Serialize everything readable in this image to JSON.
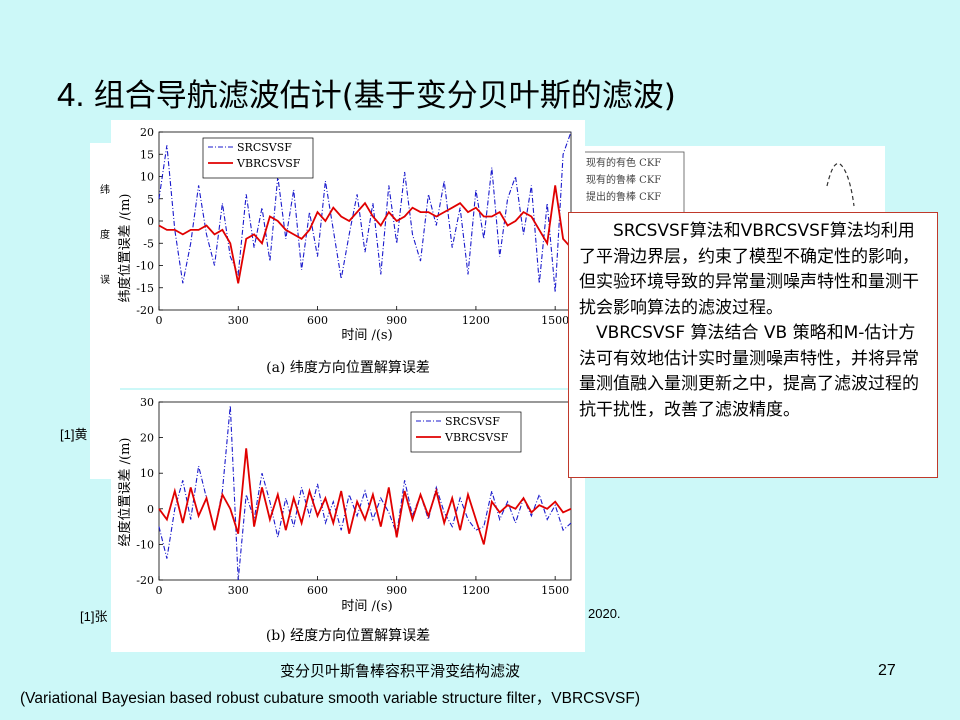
{
  "title": {
    "number": "4.",
    "text": "组合导航滤波估计",
    "paren": "(基于变分贝叶斯的滤波)"
  },
  "background_figure": {
    "legend": [
      "现有的有色 CKF",
      "现有的鲁棒 CKF",
      "提出的鲁棒 CKF"
    ],
    "ref_label": "[1]黄"
  },
  "figures": [
    {
      "caption": "(a)  纬度方向位置解算误差",
      "ylabel": "纬度位置误差 /(m)",
      "xlabel": "时间 /(s)",
      "legend": [
        "SRCSVSF",
        "VBRCSVSF"
      ]
    },
    {
      "caption": "(b)  经度方向位置解算误差",
      "ylabel": "经度位置误差 /(m)",
      "xlabel": "时间 /(s)",
      "legend": [
        "SRCSVSF",
        "VBRCSVSF"
      ]
    }
  ],
  "chart_data": [
    {
      "type": "line",
      "title": "",
      "xlabel": "时间 /(s)",
      "ylabel": "纬度位置误差 /(m)",
      "xlim": [
        0,
        1560
      ],
      "ylim": [
        -20,
        20
      ],
      "xticks": [
        0,
        300,
        600,
        900,
        1200,
        1500
      ],
      "yticks": [
        20,
        15,
        10,
        5,
        0,
        -5,
        -10,
        -15,
        -20
      ],
      "legend_position": "top-left",
      "series": [
        {
          "name": "SRCSVSF",
          "color": "#1a1acc",
          "style": "dash-dot",
          "x": [
            0,
            30,
            60,
            90,
            120,
            150,
            180,
            210,
            240,
            270,
            300,
            330,
            360,
            390,
            420,
            450,
            480,
            510,
            540,
            570,
            600,
            630,
            660,
            690,
            720,
            750,
            780,
            810,
            840,
            870,
            900,
            930,
            960,
            990,
            1020,
            1050,
            1080,
            1110,
            1140,
            1170,
            1200,
            1230,
            1260,
            1290,
            1320,
            1350,
            1380,
            1410,
            1440,
            1470,
            1500,
            1530,
            1560
          ],
          "y": [
            5,
            17,
            -2,
            -14,
            -5,
            8,
            -3,
            -10,
            4,
            -8,
            -12,
            6,
            -6,
            3,
            -9,
            10,
            -4,
            7,
            -11,
            2,
            -8,
            9,
            -2,
            -13,
            -3,
            6,
            -7,
            4,
            -12,
            8,
            -5,
            11,
            -3,
            -9,
            6,
            -1,
            9,
            -6,
            3,
            -12,
            7,
            -4,
            12,
            -8,
            5,
            10,
            -3,
            8,
            -14,
            4,
            -16,
            15,
            20
          ]
        },
        {
          "name": "VBRCSVSF",
          "color": "#e00000",
          "style": "solid",
          "x": [
            0,
            30,
            60,
            90,
            120,
            150,
            180,
            210,
            240,
            270,
            300,
            330,
            360,
            390,
            420,
            450,
            480,
            510,
            540,
            570,
            600,
            630,
            660,
            690,
            720,
            750,
            780,
            810,
            840,
            870,
            900,
            930,
            960,
            990,
            1020,
            1050,
            1080,
            1110,
            1140,
            1170,
            1200,
            1230,
            1260,
            1290,
            1320,
            1350,
            1380,
            1410,
            1440,
            1470,
            1500,
            1530,
            1560
          ],
          "y": [
            -1,
            -2,
            -2,
            -3,
            -2,
            -2,
            -1,
            -3,
            -2,
            -5,
            -14,
            -4,
            -3,
            -5,
            1,
            0,
            -2,
            -3,
            -4,
            -2,
            2,
            0,
            3,
            1,
            0,
            2,
            4,
            1,
            -1,
            2,
            0,
            1,
            3,
            2,
            2,
            1,
            2,
            3,
            4,
            2,
            3,
            1,
            1,
            2,
            -1,
            0,
            2,
            1,
            -2,
            -5,
            8,
            -4,
            -6
          ]
        }
      ]
    },
    {
      "type": "line",
      "title": "",
      "xlabel": "时间 /(s)",
      "ylabel": "经度位置误差 /(m)",
      "xlim": [
        0,
        1560
      ],
      "ylim": [
        -20,
        30
      ],
      "xticks": [
        0,
        300,
        600,
        900,
        1200,
        1500
      ],
      "yticks": [
        30,
        20,
        10,
        0,
        -10,
        -20
      ],
      "legend_position": "top-right",
      "series": [
        {
          "name": "SRCSVSF",
          "color": "#1a1acc",
          "style": "dash-dot",
          "x": [
            0,
            30,
            60,
            90,
            120,
            150,
            180,
            210,
            240,
            270,
            300,
            330,
            360,
            390,
            420,
            450,
            480,
            510,
            540,
            570,
            600,
            630,
            660,
            690,
            720,
            750,
            780,
            810,
            840,
            870,
            900,
            930,
            960,
            990,
            1020,
            1050,
            1080,
            1110,
            1140,
            1170,
            1200,
            1230,
            1260,
            1290,
            1320,
            1350,
            1380,
            1410,
            1440,
            1470,
            1500,
            1530,
            1560
          ],
          "y": [
            -5,
            -14,
            0,
            8,
            -3,
            12,
            3,
            -6,
            5,
            29,
            -20,
            4,
            -3,
            10,
            2,
            -8,
            3,
            -5,
            6,
            -2,
            7,
            -4,
            2,
            -6,
            4,
            -2,
            5,
            -3,
            3,
            -1,
            -7,
            8,
            -2,
            4,
            -3,
            6,
            -1,
            -5,
            3,
            -3,
            -6,
            -5,
            5,
            -3,
            2,
            -4,
            3,
            -2,
            4,
            -3,
            1,
            -6,
            -4
          ]
        },
        {
          "name": "VBRCSVSF",
          "color": "#e00000",
          "style": "solid",
          "x": [
            0,
            30,
            60,
            90,
            120,
            150,
            180,
            210,
            240,
            270,
            300,
            330,
            360,
            390,
            420,
            450,
            480,
            510,
            540,
            570,
            600,
            630,
            660,
            690,
            720,
            750,
            780,
            810,
            840,
            870,
            900,
            930,
            960,
            990,
            1020,
            1050,
            1080,
            1110,
            1140,
            1170,
            1200,
            1230,
            1260,
            1290,
            1320,
            1350,
            1380,
            1410,
            1440,
            1470,
            1500,
            1530,
            1560
          ],
          "y": [
            0,
            -3,
            5,
            -4,
            6,
            -2,
            3,
            -6,
            4,
            0,
            -7,
            17,
            -5,
            6,
            -3,
            4,
            -6,
            3,
            -4,
            5,
            -2,
            3,
            -4,
            5,
            -7,
            2,
            -3,
            4,
            -5,
            6,
            -8,
            5,
            -3,
            4,
            -2,
            5,
            -4,
            3,
            -6,
            4,
            -3,
            -10,
            2,
            -1,
            1,
            0,
            3,
            -1,
            1,
            0,
            2,
            -1,
            0
          ]
        }
      ]
    }
  ],
  "callout": {
    "p1": "SRCSVSF算法和VBRCSVSF算法均利用了平滑边界层，约束了模型不确定性的影响，但实验环境导致的异常量测噪声特性和量测干扰会影响算法的滤波过程。",
    "p2": "VBRCSVSF 算法结合 VB 策略和M-估计方法可有效地估计实时量测噪声特性，并将异常量测值融入量测更新之中，提高了滤波过程的抗干扰性，改善了滤波精度。"
  },
  "refs": {
    "ref2_left": "[1]张",
    "ref2_right": "2020."
  },
  "footer": {
    "cn": "变分贝叶斯鲁棒容积平滑变结构滤波",
    "en": "(Variational Bayesian based robust cubature smooth variable structure filter，VBRCSVSF)",
    "page": "27"
  }
}
